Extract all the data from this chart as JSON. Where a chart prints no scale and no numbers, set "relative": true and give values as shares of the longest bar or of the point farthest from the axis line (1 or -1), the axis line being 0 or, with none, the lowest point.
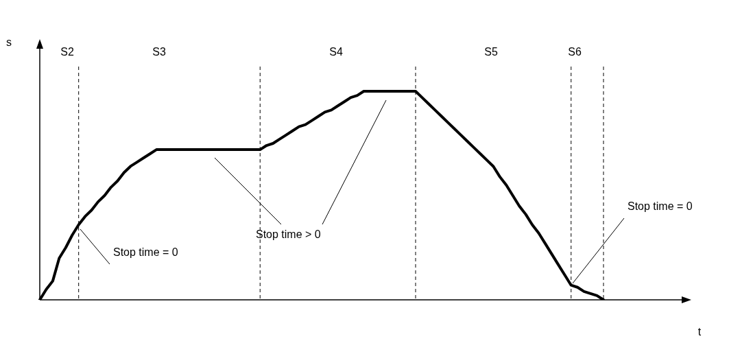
{
  "chart_data": {
    "type": "line",
    "ylabel": "s",
    "grid": "x",
    "relative": true,
    "line_style": "solid",
    "categories": [
      null,
      null,
      null,
      null,
      null,
      null,
      null,
      null,
      null,
      null,
      null,
      null,
      null,
      null,
      null,
      null,
      null,
      null,
      null,
      null,
      null,
      null,
      null,
      null,
      null,
      null,
      null,
      null,
      null,
      null,
      null,
      null,
      null,
      null,
      null,
      null,
      null,
      null,
      null,
      null,
      null,
      null,
      null,
      null,
      null,
      null,
      null,
      null,
      null,
      null,
      null,
      null,
      null,
      null,
      null,
      null,
      null,
      null,
      null,
      null,
      null,
      null,
      null,
      null,
      null,
      null,
      null,
      null,
      null,
      null,
      null,
      null,
      null,
      null,
      null,
      null,
      null,
      null,
      null,
      null,
      null,
      null,
      null,
      null,
      null,
      null,
      null,
      null
    ],
    "series": [
      {
        "color": "#000000",
        "values": [
          0,
          0.05,
          0.09,
          0.2,
          0.25,
          0.31,
          0.36,
          0.4,
          0.43,
          0.47,
          0.5,
          0.54,
          0.57,
          0.61,
          0.64,
          0.66,
          0.68,
          0.7,
          0.72,
          0.72,
          0.72,
          0.72,
          0.72,
          0.72,
          0.72,
          0.72,
          0.72,
          0.72,
          0.72,
          0.72,
          0.72,
          0.72,
          0.72,
          0.72,
          0.72,
          0.74,
          0.75,
          0.77,
          0.79,
          0.81,
          0.83,
          0.84,
          0.86,
          0.88,
          0.9,
          0.91,
          0.93,
          0.95,
          0.97,
          0.98,
          1,
          1,
          1,
          1,
          1,
          1,
          1,
          1,
          1,
          0.97,
          0.94,
          0.91,
          0.88,
          0.85,
          0.82,
          0.79,
          0.76,
          0.73,
          0.7,
          0.67,
          0.64,
          0.59,
          0.55,
          0.5,
          0.45,
          0.41,
          0.36,
          0.32,
          0.27,
          0.22,
          0.17,
          0.12,
          0.07,
          0.06,
          0.04,
          0.03,
          0.02,
          0
        ]
      }
    ],
    "annotations": [
      "S2",
      "S3",
      "S4",
      "S5",
      "S6",
      "Stop time = 0",
      "Stop time > 0",
      "Stop time = 0",
      "t"
    ]
  }
}
